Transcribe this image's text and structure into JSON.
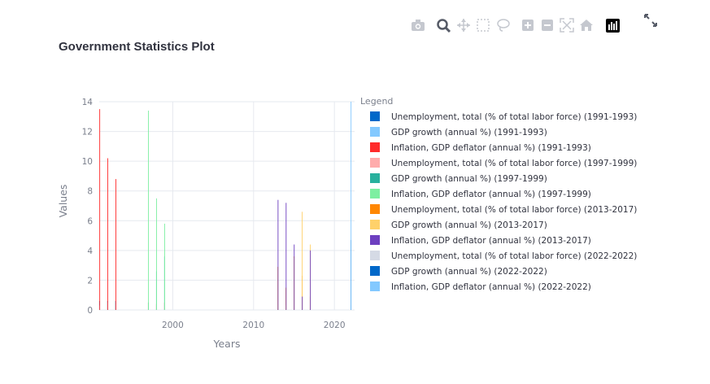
{
  "toolbar": {
    "icons": [
      "camera-icon",
      "zoom-icon",
      "pan-icon",
      "box-select-icon",
      "lasso-select-icon",
      "zoom-in-icon",
      "zoom-out-icon",
      "autoscale-icon",
      "reset-axes-icon",
      "plotly-logo-icon",
      "fullscreen-icon"
    ],
    "active_icon": "zoom-icon"
  },
  "chart_data": {
    "type": "bar",
    "title": "Government Statistics Plot",
    "xlabel": "Years",
    "ylabel": "Values",
    "xlim": [
      1990.9,
      2022.5
    ],
    "ylim": [
      0,
      14
    ],
    "xticks": [
      2000,
      2010,
      2020
    ],
    "yticks": [
      0,
      2,
      4,
      6,
      8,
      10,
      12,
      14
    ],
    "grid": true,
    "legend_title": "Legend",
    "legend_position": "right",
    "series": [
      {
        "name": "Unemployment, total (% of total labor force) (1991-1993)",
        "color": "#0068c9",
        "x": [
          1991,
          1992,
          1993
        ],
        "values": [
          0.6,
          0.6,
          0.6
        ]
      },
      {
        "name": "GDP growth (annual %) (1991-1993)",
        "color": "#83c9ff",
        "x": [
          1991,
          1992,
          1993
        ],
        "values": [
          0.3,
          0.5,
          0.4
        ]
      },
      {
        "name": "Inflation, GDP deflator (annual %) (1991-1993)",
        "color": "#ff2b2b",
        "x": [
          1991,
          1992,
          1993
        ],
        "values": [
          13.5,
          10.2,
          8.8
        ]
      },
      {
        "name": "Unemployment, total (% of total labor force) (1997-1999)",
        "color": "#ffabab",
        "x": [
          1997,
          1998,
          1999
        ],
        "values": [
          0.5,
          0.4,
          0.5
        ]
      },
      {
        "name": "GDP growth (annual %) (1997-1999)",
        "color": "#29b09d",
        "x": [
          1997,
          1998,
          1999
        ],
        "values": [
          0.5,
          2.6,
          3.6
        ]
      },
      {
        "name": "Inflation, GDP deflator (annual %) (1997-1999)",
        "color": "#7defa1",
        "x": [
          1997,
          1998,
          1999
        ],
        "values": [
          13.4,
          7.5,
          5.8
        ]
      },
      {
        "name": "Unemployment, total (% of total labor force) (2013-2017)",
        "color": "#ff8700",
        "x": [
          2013,
          2014,
          2015,
          2016,
          2017
        ],
        "values": [
          2.9,
          1.5,
          3.6,
          2.3,
          0.9
        ]
      },
      {
        "name": "GDP growth (annual %) (2013-2017)",
        "color": "#ffd16a",
        "x": [
          2013,
          2014,
          2015,
          2016,
          2017
        ],
        "values": [
          0.4,
          0.3,
          3.5,
          6.6,
          4.4
        ]
      },
      {
        "name": "Inflation, GDP deflator (annual %) (2013-2017)",
        "color": "#6d3fc0",
        "x": [
          2013,
          2014,
          2015,
          2016,
          2017
        ],
        "values": [
          7.4,
          7.2,
          4.4,
          0.9,
          4.0
        ]
      },
      {
        "name": "Unemployment, total (% of total labor force) (2022-2022)",
        "color": "#d5dae5",
        "x": [
          2022
        ],
        "values": [
          0.3
        ]
      },
      {
        "name": "GDP growth (annual %) (2022-2022)",
        "color": "#0068c9",
        "x": [
          2022
        ],
        "values": [
          4.7
        ]
      },
      {
        "name": "Inflation, GDP deflator (annual %) (2022-2022)",
        "color": "#83c9ff",
        "x": [
          2022
        ],
        "values": [
          14.0
        ]
      }
    ]
  }
}
